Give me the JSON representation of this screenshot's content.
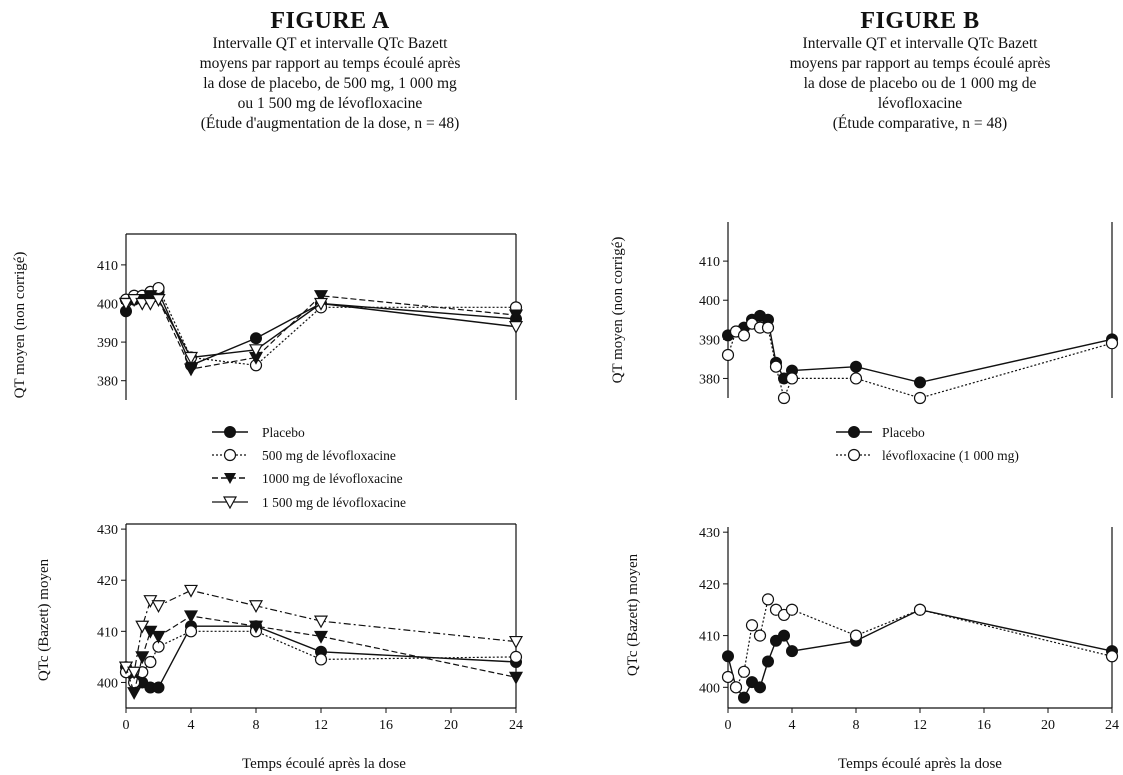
{
  "figure_a": {
    "title": "FIGURE A",
    "caption": [
      "Intervalle QT et intervalle QTc Bazett",
      "moyens par rapport au temps écoulé après",
      "la dose de placebo, de 500 mg, 1 000 mg",
      "ou 1 500 mg de lévofloxacine",
      "(Étude d'augmentation de la dose, n = 48)"
    ],
    "legend": [
      "Placebo",
      "500 mg de lévofloxacine",
      "1000 mg de lévofloxacine",
      "1 500 mg de lévofloxacine"
    ],
    "xlabel": "Temps écoulé après la dose"
  },
  "figure_b": {
    "title": "FIGURE B",
    "caption": [
      "Intervalle QT et intervalle QTc Bazett",
      "moyens par rapport au temps écoulé après",
      "la dose de placebo ou de 1 000 mg de",
      "lévofloxacine",
      "(Étude comparative, n = 48)"
    ],
    "legend": [
      "Placebo",
      "lévofloxacine (1 000 mg)"
    ],
    "xlabel": "Temps écoulé après la dose"
  },
  "colors": {
    "ink": "#111111",
    "background": "#ffffff"
  },
  "chart_data": [
    {
      "id": "A-QT",
      "type": "line",
      "ylabel": "QT moyen (non corrigé)",
      "xlabel": "",
      "xlim": [
        0,
        24
      ],
      "ylim": [
        375,
        418
      ],
      "yticks": [
        380,
        390,
        400,
        410
      ],
      "xticks": [],
      "series": [
        {
          "name": "Placebo",
          "marker": "filled-circle",
          "dash": "solid",
          "x": [
            0,
            0.5,
            1,
            1.5,
            2,
            4,
            8,
            12,
            24
          ],
          "y": [
            398,
            401,
            401,
            402,
            403,
            384,
            391,
            400,
            396
          ]
        },
        {
          "name": "500 mg de lévofloxacine",
          "marker": "open-circle",
          "dash": "dotted",
          "x": [
            0,
            0.5,
            1,
            1.5,
            2,
            4,
            8,
            12,
            24
          ],
          "y": [
            401,
            402,
            402,
            403,
            404,
            386,
            384,
            399,
            399
          ]
        },
        {
          "name": "1000 mg de lévofloxacine",
          "marker": "filled-triangle-down",
          "dash": "dashed",
          "x": [
            0,
            0.5,
            1,
            1.5,
            2,
            4,
            8,
            12,
            24
          ],
          "y": [
            400,
            401,
            401,
            402,
            401,
            383,
            386,
            402,
            397
          ]
        },
        {
          "name": "1 500 mg de lévofloxacine",
          "marker": "open-triangle-down",
          "dash": "solid",
          "x": [
            0,
            0.5,
            1,
            1.5,
            2,
            4,
            8,
            12,
            24
          ],
          "y": [
            400,
            401,
            400,
            400,
            401,
            386,
            388,
            400,
            394
          ]
        }
      ]
    },
    {
      "id": "A-QTc",
      "type": "line",
      "ylabel": "QTc (Bazett) moyen",
      "xlabel": "Temps écoulé après la dose",
      "xlim": [
        0,
        24
      ],
      "ylim": [
        395,
        431
      ],
      "yticks": [
        400,
        410,
        420,
        430
      ],
      "xticks": [
        0,
        4,
        8,
        12,
        16,
        20,
        24
      ],
      "series": [
        {
          "name": "Placebo",
          "marker": "filled-circle",
          "dash": "solid",
          "x": [
            0,
            0.5,
            1,
            1.5,
            2,
            4,
            8,
            12,
            24
          ],
          "y": [
            403,
            401,
            400,
            399,
            399,
            411,
            411,
            406,
            404
          ]
        },
        {
          "name": "500 mg de lévofloxacine",
          "marker": "open-circle",
          "dash": "dotted",
          "x": [
            0,
            0.5,
            1,
            1.5,
            2,
            4,
            8,
            12,
            24
          ],
          "y": [
            402,
            400,
            402,
            404,
            407,
            410,
            410,
            404.5,
            405
          ]
        },
        {
          "name": "1000 mg de lévofloxacine",
          "marker": "filled-triangle-down",
          "dash": "dashed",
          "x": [
            0,
            0.5,
            1,
            1.5,
            2,
            4,
            8,
            12,
            24
          ],
          "y": [
            403,
            398,
            405,
            410,
            409,
            413,
            411,
            409,
            401
          ]
        },
        {
          "name": "1 500 mg de lévofloxacine",
          "marker": "open-triangle-down",
          "dash": "dashdot",
          "x": [
            0,
            0.5,
            1,
            1.5,
            2,
            4,
            8,
            12,
            24
          ],
          "y": [
            403,
            402,
            411,
            416,
            415,
            418,
            415,
            412,
            408
          ]
        }
      ]
    },
    {
      "id": "B-QT",
      "type": "line",
      "ylabel": "QT moyen (non corrigé)",
      "xlabel": "",
      "xlim": [
        0,
        24
      ],
      "ylim": [
        375,
        420
      ],
      "yticks": [
        380,
        390,
        400,
        410
      ],
      "xticks": [],
      "series": [
        {
          "name": "Placebo",
          "marker": "filled-circle",
          "dash": "solid",
          "x": [
            0,
            0.5,
            1,
            1.5,
            2,
            2.5,
            3,
            3.5,
            4,
            8,
            12,
            24
          ],
          "y": [
            391,
            392,
            393,
            395,
            396,
            395,
            384,
            380,
            382,
            383,
            379,
            390
          ]
        },
        {
          "name": "lévofloxacine (1 000 mg)",
          "marker": "open-circle",
          "dash": "dotted",
          "x": [
            0,
            0.5,
            1,
            1.5,
            2,
            2.5,
            3,
            3.5,
            4,
            8,
            12,
            24
          ],
          "y": [
            386,
            392,
            391,
            394,
            393,
            393,
            383,
            375,
            380,
            380,
            375,
            389
          ]
        }
      ]
    },
    {
      "id": "B-QTc",
      "type": "line",
      "ylabel": "QTc (Bazett) moyen",
      "xlabel": "Temps écoulé après la dose",
      "xlim": [
        0,
        24
      ],
      "ylim": [
        396,
        431
      ],
      "yticks": [
        400,
        410,
        420,
        430
      ],
      "xticks": [
        0,
        4,
        8,
        12,
        16,
        20,
        24
      ],
      "series": [
        {
          "name": "Placebo",
          "marker": "filled-circle",
          "dash": "solid",
          "x": [
            0,
            0.5,
            1,
            1.5,
            2,
            2.5,
            3,
            3.5,
            4,
            8,
            12,
            24
          ],
          "y": [
            406,
            400,
            398,
            401,
            400,
            405,
            409,
            410,
            407,
            409,
            415,
            407
          ]
        },
        {
          "name": "lévofloxacine (1 000 mg)",
          "marker": "open-circle",
          "dash": "dotted",
          "x": [
            0,
            0.5,
            1,
            1.5,
            2,
            2.5,
            3,
            3.5,
            4,
            8,
            12,
            24
          ],
          "y": [
            402,
            400,
            403,
            412,
            410,
            417,
            415,
            414,
            415,
            410,
            415,
            406
          ]
        }
      ]
    }
  ]
}
